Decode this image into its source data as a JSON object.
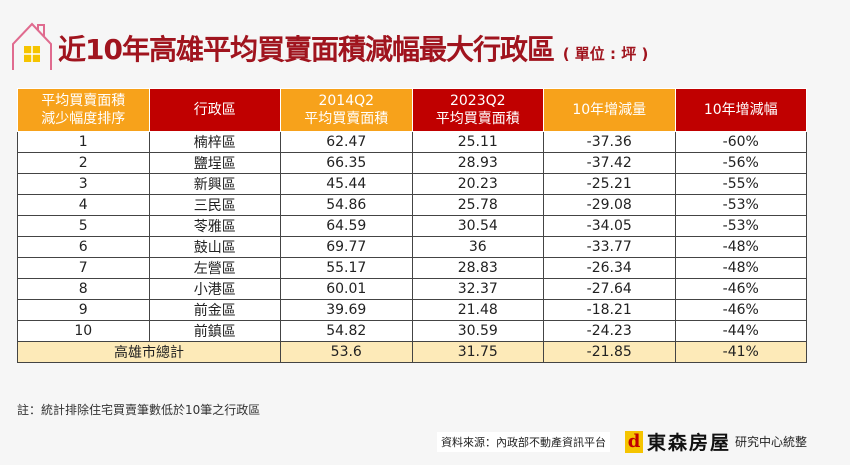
{
  "title": "近10年高雄平均買賣面積減幅最大行政區",
  "unit": "( 單位 : 坪 )",
  "headers": [
    "平均買賣面積\n減少幅度排序",
    "行政區",
    "2014Q2\n平均買賣面積",
    "2023Q2\n平均買賣面積",
    "10年增減量",
    "10年增減幅"
  ],
  "header_colors": {
    "orange": "#f7a21b",
    "red": "#c00000",
    "title": "#a0141e"
  },
  "rows": [
    [
      "1",
      "楠梓區",
      "62.47",
      "25.11",
      "-37.36",
      "-60%"
    ],
    [
      "2",
      "鹽埕區",
      "66.35",
      "28.93",
      "-37.42",
      "-56%"
    ],
    [
      "3",
      "新興區",
      "45.44",
      "20.23",
      "-25.21",
      "-55%"
    ],
    [
      "4",
      "三民區",
      "54.86",
      "25.78",
      "-29.08",
      "-53%"
    ],
    [
      "5",
      "苓雅區",
      "64.59",
      "30.54",
      "-34.05",
      "-53%"
    ],
    [
      "6",
      "鼓山區",
      "69.77",
      "36",
      "-33.77",
      "-48%"
    ],
    [
      "7",
      "左營區",
      "55.17",
      "28.83",
      "-26.34",
      "-48%"
    ],
    [
      "8",
      "小港區",
      "60.01",
      "32.37",
      "-27.64",
      "-46%"
    ],
    [
      "9",
      "前金區",
      "39.69",
      "21.48",
      "-18.21",
      "-46%"
    ],
    [
      "10",
      "前鎮區",
      "54.82",
      "30.59",
      "-24.23",
      "-44%"
    ]
  ],
  "total": [
    "高雄市總計",
    "53.6",
    "31.75",
    "-21.85",
    "-41%"
  ],
  "note": "註：統計排除住宅買賣筆數低於10筆之行政區",
  "source": "資料來源：內政部不動產資訊平台",
  "brand": {
    "name": "東森房屋",
    "suffix": "研究中心統整"
  }
}
